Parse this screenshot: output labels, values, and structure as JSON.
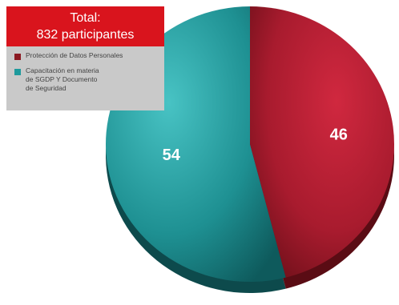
{
  "total": {
    "line1": "Total:",
    "line2": "832 participantes"
  },
  "legend": {
    "items": [
      {
        "label": "Protección de Datos Personales",
        "color": "#8b1a22"
      },
      {
        "label": "Capacitación en materia\nde SGDP Y Documento\nde Seguridad",
        "color": "#1e9a9c"
      }
    ]
  },
  "colors": {
    "total_bg": "#d9141d",
    "legend_bg": "#c9c9c9",
    "teal_light": "#3fbcbd",
    "teal_dark": "#0d4a4c",
    "red_light": "#c8243a",
    "red_dark": "#6a0f18"
  },
  "chart_data": {
    "type": "pie",
    "categories": [
      "Capacitación en materia de SGDP Y Documento de Seguridad",
      "Protección de Datos Personales"
    ],
    "values": [
      54,
      46
    ],
    "data_labels": [
      "54",
      "46"
    ],
    "title": "",
    "legend_position": "top-left"
  }
}
